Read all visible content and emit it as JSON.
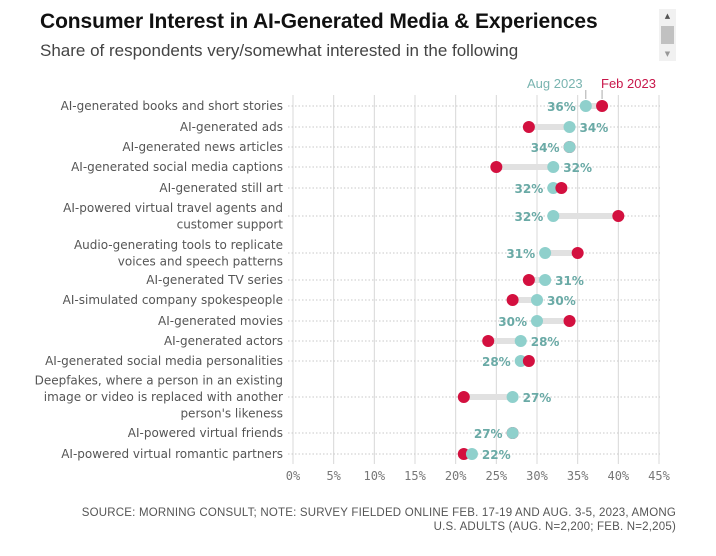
{
  "header": {
    "title": "Consumer Interest in AI-Generated Media & Experiences",
    "subtitle": "Share of respondents very/somewhat interested in the following"
  },
  "scrollbar": {
    "up_icon": "▲",
    "down_icon": "▼"
  },
  "footer": {
    "source_line1": "SOURCE: MORNING CONSULT; NOTE: SURVEY FIELDED ONLINE FEB. 17-19 AND AUG. 3-5, 2023, AMONG",
    "source_line2": "U.S. ADULTS (AUG. N=2,200; FEB. N=2,205)"
  },
  "colors": {
    "aug": "#8fd0cc",
    "feb": "#d3103f",
    "connector": "#e1e1e1",
    "value_label": "#6aaaa6"
  },
  "chart_data": {
    "type": "dot-plot",
    "title": "Consumer Interest in AI-Generated Media & Experiences",
    "subtitle": "Share of respondents very/somewhat interested in the following",
    "xlabel": "",
    "ylabel": "",
    "xlim": [
      0,
      45
    ],
    "x_ticks": [
      "0%",
      "5%",
      "10%",
      "15%",
      "20%",
      "25%",
      "30%",
      "35%",
      "40%",
      "45%"
    ],
    "x_tick_values": [
      0,
      5,
      10,
      15,
      20,
      25,
      30,
      35,
      40,
      45
    ],
    "grid": true,
    "legend": {
      "placement": "top-right",
      "entries": [
        "Aug 2023",
        "Feb 2023"
      ]
    },
    "categories": [
      [
        "AI-generated books and short stories"
      ],
      [
        "AI-generated ads"
      ],
      [
        "AI-generated news articles"
      ],
      [
        "AI-generated social media captions"
      ],
      [
        "AI-generated still art"
      ],
      [
        "AI-powered virtual travel agents and",
        "customer support"
      ],
      [
        "Audio-generating tools to replicate",
        "voices and speech patterns"
      ],
      [
        "AI-generated TV series"
      ],
      [
        "AI-simulated company spokespeople"
      ],
      [
        "AI-generated movies"
      ],
      [
        "AI-generated actors"
      ],
      [
        "AI-generated social media personalities"
      ],
      [
        "Deepfakes, where a person in an existing",
        "image or video is replaced with another",
        "person's likeness"
      ],
      [
        "AI-powered virtual friends"
      ],
      [
        "AI-powered virtual romantic partners"
      ]
    ],
    "series": [
      {
        "name": "Aug 2023",
        "values": [
          36,
          34,
          34,
          32,
          32,
          32,
          31,
          31,
          30,
          30,
          28,
          28,
          27,
          27,
          22
        ]
      },
      {
        "name": "Feb 2023",
        "values": [
          38,
          29,
          34,
          25,
          33,
          40,
          35,
          29,
          27,
          34,
          24,
          29,
          21,
          27,
          21
        ]
      }
    ],
    "value_labels": [
      "36%",
      "34%",
      "34%",
      "32%",
      "32%",
      "32%",
      "31%",
      "31%",
      "30%",
      "30%",
      "28%",
      "28%",
      "27%",
      "27%",
      "22%"
    ]
  }
}
